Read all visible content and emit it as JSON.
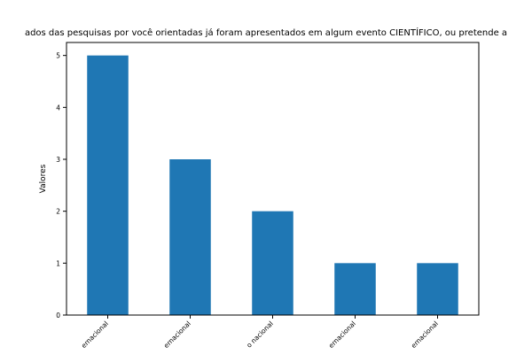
{
  "chart_data": {
    "type": "bar",
    "title": "ados das pesquisas por você orientadas já foram apresentados em algum evento CIENTÍFICO, ou pretende a",
    "xlabel": "",
    "ylabel": "Valores",
    "categories": [
      "ernacional",
      "ernacional",
      "o nacional",
      "ernacional",
      "ernacional"
    ],
    "values": [
      5,
      3,
      2,
      1,
      1
    ],
    "ylim": [
      0,
      5.25
    ],
    "yticks": [
      0,
      1,
      2,
      3,
      4,
      5
    ],
    "bar_color": "#1f77b4",
    "grid": false,
    "legend": "none"
  }
}
